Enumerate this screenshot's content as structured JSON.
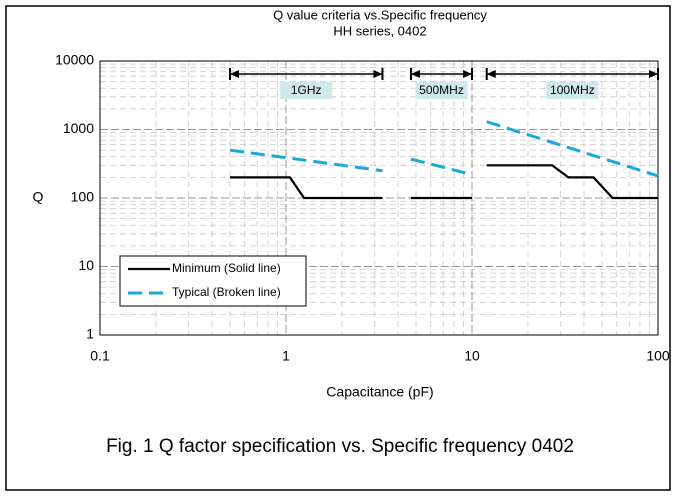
{
  "chart_data": {
    "type": "line",
    "title": "Q value criteria vs.Specific frequency",
    "subtitle": "HH series, 0402",
    "xlabel": "Capacitance (pF)",
    "ylabel": "Q",
    "caption": "Fig. 1 Q factor specification vs. Specific frequency 0402",
    "xscale": "log",
    "yscale": "log",
    "xlim": [
      0.1,
      100
    ],
    "ylim": [
      1,
      10000
    ],
    "xticks": [
      0.1,
      1,
      10,
      100
    ],
    "yticks": [
      1,
      10,
      100,
      1000,
      10000
    ],
    "grid": true,
    "legend": "lower left",
    "series": [
      {
        "name": "Minimum (Solid line)",
        "color": "#000000",
        "style": "solid",
        "x": [
          0.5,
          1.05,
          1.25,
          3.3,
          null,
          4.7,
          10,
          null,
          12,
          27,
          33,
          45,
          57,
          100
        ],
        "values": [
          200,
          200,
          100,
          100,
          null,
          100,
          100,
          null,
          300,
          300,
          200,
          200,
          100,
          100
        ]
      },
      {
        "name": "Typical (Broken line)",
        "color": "#1aa8dc",
        "style": "dashed",
        "x": [
          0.5,
          3.3,
          null,
          4.7,
          10,
          null,
          12,
          100
        ],
        "values": [
          500,
          250,
          null,
          370,
          220,
          null,
          1300,
          210
        ]
      }
    ],
    "annotations": [
      {
        "text": "1GHz",
        "x": [
          0.5,
          3.3
        ]
      },
      {
        "text": "500MHz",
        "x": [
          4.7,
          10
        ]
      },
      {
        "text": "100MHz",
        "x": [
          12,
          100
        ]
      }
    ]
  }
}
